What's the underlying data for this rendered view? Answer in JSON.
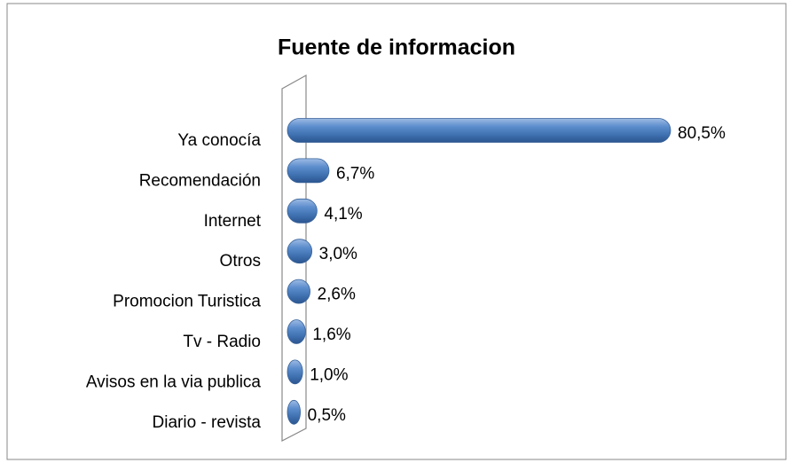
{
  "chart_data": {
    "type": "barh",
    "title": "Fuente de informacion",
    "categories": [
      "Ya conocía",
      "Recomendación",
      "Internet",
      "Otros",
      "Promocion Turistica",
      "Tv - Radio",
      "Avisos en la via publica",
      "Diario - revista"
    ],
    "values": [
      80.5,
      6.7,
      4.1,
      3.0,
      2.6,
      1.6,
      1.0,
      0.5
    ],
    "value_labels": [
      "80,5%",
      "6,7%",
      "4,1%",
      "3,0%",
      "2,6%",
      "1,6%",
      "1,0%",
      "0,5%"
    ],
    "color": "#4f81bd"
  }
}
